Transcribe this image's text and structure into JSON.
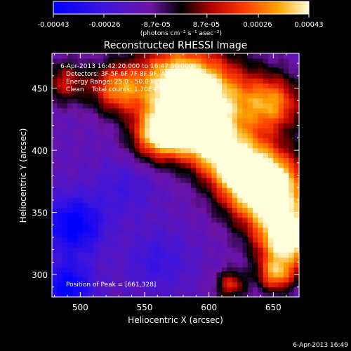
{
  "colorbar": {
    "ticks": [
      "-0.00043",
      "-0.00026",
      "-8.7e-05",
      "8.7e-05",
      "0.00026",
      "0.00043"
    ],
    "tick_values": [
      -0.00043,
      -0.00026,
      -8.7e-05,
      8.7e-05,
      0.00026,
      0.00043
    ],
    "range": [
      -0.00043,
      0.00043
    ],
    "unit_label": "(photons cm⁻² s⁻¹ asec⁻²)"
  },
  "title": "Reconstructed RHESSI Image",
  "info": {
    "line1": "6-Apr-2013 16:42:20.000 to 16:47:50.000",
    "line2": "Detectors: 3F 5F 6F 7F 8F 9F, Att 0",
    "line3": "Energy Range: 25.0 - 50.0 keV",
    "line4": "Clean    Total counts: 1.70E+04"
  },
  "peak_text": "Position of Peak = [661,328]",
  "timestamp": "6-Apr-2013 16:49",
  "chart_data": {
    "type": "heatmap",
    "title": "Reconstructed RHESSI Image",
    "xlabel": "Heliocentric X (arcsec)",
    "ylabel": "Heliocentric Y (arcsec)",
    "xlim": [
      478,
      670
    ],
    "ylim": [
      282,
      478
    ],
    "xticks": [
      500,
      550,
      600,
      650
    ],
    "yticks": [
      300,
      350,
      400,
      450
    ],
    "zlim": [
      -0.00043,
      0.00043
    ],
    "peak": [
      661,
      328
    ],
    "blobs": [
      {
        "x": 661,
        "y": 328,
        "amp": 0.00043,
        "w": 16
      },
      {
        "x": 650,
        "y": 365,
        "amp": 0.0004,
        "w": 22
      },
      {
        "x": 632,
        "y": 380,
        "amp": 0.00036,
        "w": 18
      },
      {
        "x": 600,
        "y": 438,
        "amp": 0.00038,
        "w": 26
      },
      {
        "x": 572,
        "y": 455,
        "amp": 0.0003,
        "w": 22
      },
      {
        "x": 560,
        "y": 412,
        "amp": 0.00032,
        "w": 14
      },
      {
        "x": 585,
        "y": 418,
        "amp": 0.00026,
        "w": 14
      },
      {
        "x": 528,
        "y": 450,
        "amp": 0.00024,
        "w": 14
      },
      {
        "x": 650,
        "y": 438,
        "amp": 0.00024,
        "w": 16
      },
      {
        "x": 608,
        "y": 398,
        "amp": 0.00022,
        "w": 16
      },
      {
        "x": 488,
        "y": 455,
        "amp": 0.00012,
        "w": 12
      },
      {
        "x": 652,
        "y": 300,
        "amp": 0.00024,
        "w": 10
      },
      {
        "x": 617,
        "y": 292,
        "amp": 0.00016,
        "w": 8
      },
      {
        "x": 495,
        "y": 340,
        "amp": -0.0003,
        "w": 16
      },
      {
        "x": 490,
        "y": 290,
        "amp": -0.00028,
        "w": 14
      },
      {
        "x": 535,
        "y": 370,
        "amp": -0.0001,
        "w": 16
      },
      {
        "x": 560,
        "y": 310,
        "amp": -0.00012,
        "w": 18
      }
    ]
  }
}
